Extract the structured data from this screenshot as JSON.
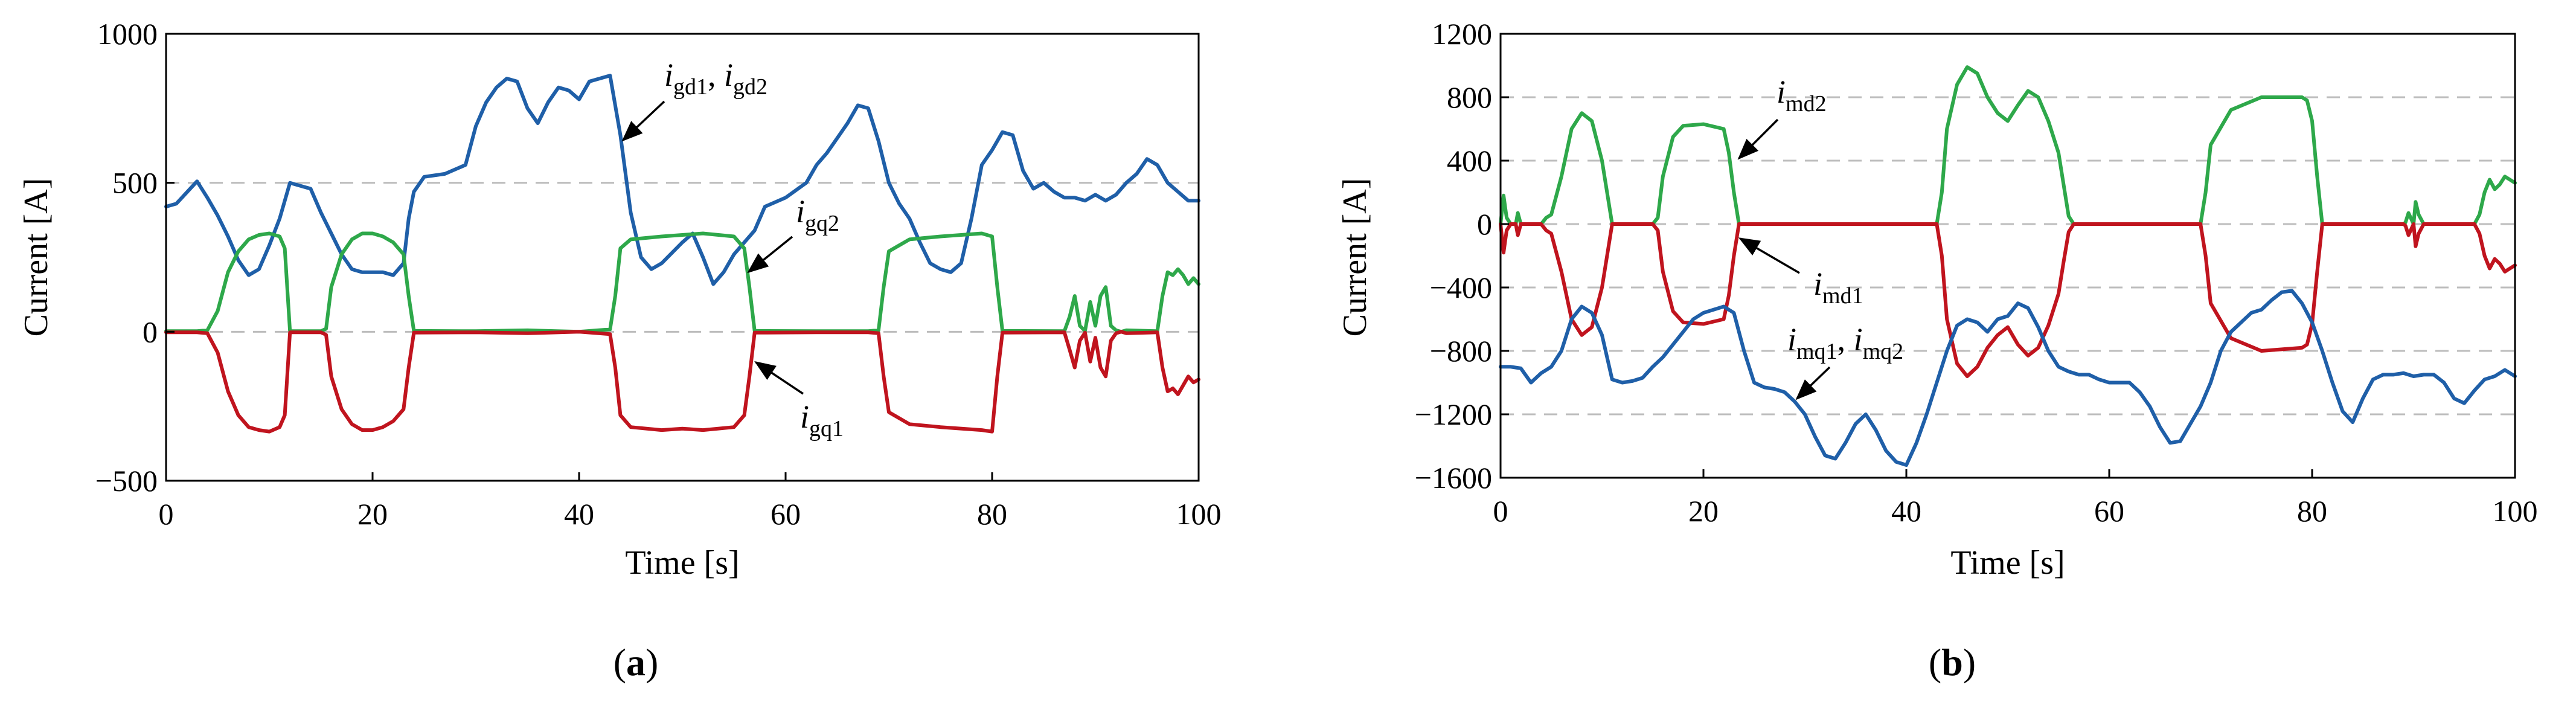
{
  "chart_data": [
    {
      "type": "line",
      "panel_label": "(a)",
      "xlabel": "Time [s]",
      "ylabel": "Current [A]",
      "xlim": [
        0,
        100
      ],
      "ylim": [
        -500,
        1000
      ],
      "xticks": [
        "0",
        "20",
        "40",
        "60",
        "80",
        "100"
      ],
      "yticks": [
        "1000",
        "500",
        "0",
        "−500"
      ],
      "ytick_values": [
        1000,
        500,
        0,
        -500
      ],
      "grid_y": [
        500,
        0
      ],
      "colors": {
        "blue": "#1f5fa8",
        "green": "#2ea84a",
        "red": "#c0141e"
      },
      "series": [
        {
          "name": "i_gd1, i_gd2",
          "color": "#1f5fa8",
          "x": [
            0,
            1,
            3,
            4,
            5,
            6,
            7,
            8,
            9,
            10,
            11,
            12,
            14,
            15,
            16,
            17,
            18,
            19,
            20,
            21,
            22,
            23,
            23.5,
            24,
            25,
            27,
            29,
            30,
            31,
            32,
            33,
            34,
            35,
            36,
            37,
            38,
            39,
            40,
            41,
            42,
            43,
            44,
            45,
            46,
            47,
            48,
            50,
            51,
            52,
            53,
            54,
            55,
            57,
            58,
            60,
            62,
            63,
            64,
            65,
            66,
            67,
            68,
            69,
            70,
            71,
            72,
            73,
            74,
            75,
            76,
            77,
            78,
            79,
            80,
            81,
            82,
            83,
            84,
            85,
            86,
            87,
            88,
            89,
            90,
            91,
            92,
            93,
            94,
            95,
            96,
            97,
            98,
            99,
            100
          ],
          "y": [
            420,
            430,
            505,
            450,
            390,
            320,
            240,
            190,
            210,
            290,
            380,
            500,
            480,
            400,
            330,
            260,
            210,
            200,
            200,
            200,
            190,
            230,
            380,
            470,
            520,
            530,
            560,
            690,
            770,
            820,
            850,
            840,
            750,
            700,
            770,
            820,
            810,
            780,
            840,
            850,
            860,
            660,
            400,
            250,
            210,
            230,
            300,
            330,
            250,
            160,
            200,
            260,
            340,
            420,
            450,
            500,
            560,
            600,
            650,
            700,
            760,
            750,
            640,
            500,
            430,
            380,
            300,
            230,
            210,
            200,
            230,
            380,
            560,
            610,
            670,
            660,
            540,
            480,
            500,
            470,
            450,
            450,
            440,
            460,
            440,
            460,
            500,
            530,
            580,
            560,
            500,
            470,
            440,
            440
          ]
        },
        {
          "name": "i_gq2",
          "color": "#2ea84a",
          "x": [
            0,
            3,
            4,
            5,
            6,
            7,
            8,
            9,
            10,
            11,
            11.5,
            12,
            15,
            15.5,
            16,
            17,
            18,
            19,
            20,
            21,
            22,
            23,
            23.5,
            24,
            30,
            35,
            40,
            43,
            43.5,
            44,
            45,
            48,
            50,
            52,
            55,
            56,
            56.5,
            57,
            63,
            68,
            69,
            69.5,
            70,
            72,
            75,
            79,
            80,
            80.5,
            81,
            87,
            87.5,
            88,
            88.5,
            89,
            89.5,
            90,
            90.5,
            91,
            91.5,
            92,
            92.5,
            93,
            96,
            96.5,
            97,
            97.5,
            98,
            98.5,
            99,
            99.5,
            100
          ],
          "y": [
            2,
            2,
            5,
            70,
            200,
            270,
            310,
            325,
            330,
            320,
            280,
            2,
            2,
            10,
            150,
            260,
            310,
            330,
            330,
            320,
            300,
            260,
            120,
            3,
            2,
            5,
            0,
            8,
            120,
            280,
            310,
            320,
            325,
            330,
            320,
            280,
            150,
            3,
            2,
            2,
            5,
            150,
            270,
            310,
            320,
            330,
            320,
            150,
            3,
            2,
            50,
            120,
            20,
            3,
            100,
            20,
            120,
            150,
            20,
            5,
            0,
            5,
            2,
            120,
            200,
            190,
            210,
            190,
            160,
            180,
            160
          ]
        },
        {
          "name": "i_gq1",
          "color": "#c0141e",
          "x": [
            0,
            3,
            4,
            5,
            6,
            7,
            8,
            9,
            10,
            11,
            11.5,
            12,
            15,
            15.5,
            16,
            17,
            18,
            19,
            20,
            21,
            22,
            23,
            23.5,
            24,
            30,
            35,
            40,
            43,
            43.5,
            44,
            45,
            48,
            50,
            52,
            55,
            56,
            56.5,
            57,
            63,
            68,
            69,
            69.5,
            70,
            72,
            75,
            79,
            80,
            80.5,
            81,
            87,
            87.5,
            88,
            88.5,
            89,
            89.5,
            90,
            90.5,
            91,
            91.5,
            92,
            92.5,
            93,
            96,
            96.5,
            97,
            97.5,
            98,
            98.5,
            99,
            99.5,
            100
          ],
          "y": [
            -2,
            -2,
            -5,
            -70,
            -200,
            -280,
            -320,
            -330,
            -335,
            -320,
            -280,
            -2,
            -2,
            -10,
            -150,
            -260,
            -310,
            -330,
            -330,
            -320,
            -300,
            -260,
            -120,
            -3,
            -2,
            -5,
            0,
            -8,
            -120,
            -280,
            -320,
            -330,
            -325,
            -330,
            -320,
            -280,
            -150,
            -3,
            -2,
            -2,
            -5,
            -150,
            -270,
            -310,
            -320,
            -330,
            -335,
            -150,
            -3,
            -2,
            -60,
            -120,
            -30,
            -3,
            -100,
            -20,
            -120,
            -150,
            -30,
            -5,
            0,
            -5,
            -2,
            -120,
            -200,
            -190,
            -210,
            -180,
            -150,
            -170,
            -160
          ]
        }
      ],
      "annotations": [
        {
          "base": "i",
          "subscript": "gd1",
          "sep": ", ",
          "base2": "i",
          "subscript2": "gd2"
        },
        {
          "base": "i",
          "subscript": "gq2"
        },
        {
          "base": "i",
          "subscript": "gq1"
        }
      ]
    },
    {
      "type": "line",
      "panel_label": "(b)",
      "xlabel": "Time [s]",
      "ylabel": "Current [A]",
      "xlim": [
        0,
        100
      ],
      "ylim": [
        -1600,
        1200
      ],
      "xticks": [
        "0",
        "20",
        "40",
        "60",
        "80",
        "100"
      ],
      "yticks": [
        "1200",
        "800",
        "400",
        "0",
        "−400",
        "−800",
        "−1200",
        "−1600"
      ],
      "ytick_values": [
        1200,
        800,
        400,
        0,
        -400,
        -800,
        -1200,
        -1600
      ],
      "grid_y": [
        800,
        400,
        0,
        -400,
        -800,
        -1200
      ],
      "colors": {
        "blue": "#1f5fa8",
        "green": "#2ea84a",
        "red": "#c0141e"
      },
      "series": [
        {
          "name": "i_md2",
          "color": "#2ea84a",
          "x": [
            0,
            0.3,
            0.6,
            1,
            1.5,
            1.7,
            2,
            4,
            4.5,
            5,
            6,
            7,
            8,
            9,
            10,
            10.5,
            11,
            15,
            15.5,
            16,
            17,
            18,
            20,
            22,
            22.5,
            23,
            23.5,
            24,
            30,
            40,
            43,
            43.5,
            44,
            45,
            46,
            47,
            48,
            49,
            50,
            51,
            52,
            53,
            54,
            55,
            55.5,
            56,
            56.5,
            57,
            63,
            68,
            69,
            69.5,
            70,
            72,
            75,
            79,
            79.5,
            80,
            80.5,
            81,
            87,
            87.5,
            88,
            89,
            89.2,
            89.5,
            90,
            90.2,
            90.5,
            91,
            96,
            96.5,
            97,
            97.5,
            98,
            98.5,
            99,
            99.5,
            100
          ],
          "y": [
            0,
            180,
            40,
            0,
            0,
            70,
            0,
            0,
            40,
            60,
            300,
            600,
            700,
            650,
            400,
            200,
            0,
            0,
            40,
            300,
            550,
            620,
            630,
            600,
            450,
            200,
            0,
            0,
            0,
            0,
            0,
            200,
            600,
            880,
            990,
            950,
            800,
            700,
            650,
            750,
            840,
            800,
            650,
            450,
            250,
            50,
            0,
            0,
            0,
            0,
            0,
            200,
            500,
            720,
            800,
            800,
            780,
            650,
            300,
            0,
            0,
            0,
            0,
            0,
            10,
            70,
            0,
            140,
            60,
            0,
            0,
            60,
            200,
            280,
            220,
            250,
            300,
            280,
            260
          ]
        },
        {
          "name": "i_md1",
          "color": "#c0141e",
          "x": [
            0,
            0.3,
            0.6,
            1,
            1.5,
            1.7,
            2,
            4,
            4.5,
            5,
            6,
            7,
            8,
            9,
            10,
            10.5,
            11,
            15,
            15.5,
            16,
            17,
            18,
            20,
            22,
            22.5,
            23,
            23.5,
            24,
            30,
            40,
            43,
            43.5,
            44,
            45,
            46,
            47,
            48,
            49,
            50,
            51,
            52,
            53,
            54,
            55,
            55.5,
            56,
            56.5,
            57,
            63,
            68,
            69,
            69.5,
            70,
            72,
            75,
            79,
            79.5,
            80,
            80.5,
            81,
            87,
            87.5,
            88,
            89,
            89.2,
            89.5,
            90,
            90.2,
            90.5,
            91,
            96,
            96.5,
            97,
            97.5,
            98,
            98.5,
            99,
            99.5,
            100
          ],
          "y": [
            0,
            -180,
            -40,
            0,
            0,
            -70,
            0,
            0,
            -40,
            -60,
            -300,
            -600,
            -700,
            -650,
            -400,
            -200,
            0,
            0,
            -40,
            -300,
            -550,
            -620,
            -630,
            -600,
            -450,
            -200,
            0,
            0,
            0,
            0,
            0,
            -200,
            -600,
            -880,
            -960,
            -900,
            -780,
            -700,
            -650,
            -760,
            -830,
            -780,
            -640,
            -440,
            -240,
            -50,
            0,
            0,
            0,
            0,
            0,
            -200,
            -500,
            -720,
            -800,
            -780,
            -760,
            -630,
            -300,
            0,
            0,
            0,
            0,
            0,
            -10,
            -70,
            0,
            -140,
            -60,
            0,
            0,
            -60,
            -200,
            -280,
            -220,
            -250,
            -300,
            -280,
            -260
          ]
        },
        {
          "name": "i_mq1, i_mq2",
          "color": "#1f5fa8",
          "x": [
            0,
            1,
            2,
            3,
            4,
            5,
            6,
            7,
            8,
            9,
            10,
            11,
            12,
            13,
            14,
            15,
            16,
            17,
            18,
            19,
            20,
            21,
            22,
            23,
            24,
            25,
            26,
            27,
            28,
            29,
            30,
            31,
            32,
            33,
            34,
            35,
            36,
            37,
            38,
            39,
            40,
            41,
            42,
            43,
            44,
            45,
            46,
            47,
            48,
            49,
            50,
            51,
            52,
            53,
            54,
            55,
            56,
            57,
            58,
            59,
            60,
            61,
            62,
            63,
            64,
            65,
            66,
            67,
            68,
            69,
            70,
            71,
            72,
            73,
            74,
            75,
            76,
            77,
            78,
            79,
            80,
            81,
            82,
            83,
            84,
            85,
            86,
            87,
            88,
            89,
            90,
            91,
            92,
            93,
            94,
            95,
            96,
            97,
            98,
            99,
            100
          ],
          "y": [
            -900,
            -900,
            -910,
            -1000,
            -940,
            -900,
            -800,
            -600,
            -520,
            -560,
            -700,
            -980,
            -1000,
            -990,
            -970,
            -900,
            -840,
            -760,
            -680,
            -600,
            -560,
            -540,
            -520,
            -560,
            -800,
            -1000,
            -1030,
            -1040,
            -1060,
            -1120,
            -1200,
            -1340,
            -1460,
            -1480,
            -1380,
            -1260,
            -1200,
            -1300,
            -1430,
            -1500,
            -1520,
            -1380,
            -1200,
            -1000,
            -800,
            -640,
            -600,
            -620,
            -680,
            -600,
            -580,
            -500,
            -530,
            -650,
            -800,
            -900,
            -930,
            -950,
            -950,
            -980,
            -1000,
            -1000,
            -1000,
            -1060,
            -1150,
            -1280,
            -1380,
            -1370,
            -1260,
            -1150,
            -1000,
            -800,
            -680,
            -620,
            -560,
            -540,
            -480,
            -430,
            -420,
            -500,
            -620,
            -800,
            -1000,
            -1180,
            -1250,
            -1100,
            -980,
            -950,
            -950,
            -940,
            -960,
            -950,
            -950,
            -1000,
            -1100,
            -1130,
            -1050,
            -980,
            -960,
            -920,
            -960
          ]
        }
      ],
      "annotations": [
        {
          "base": "i",
          "subscript": "md2"
        },
        {
          "base": "i",
          "subscript": "md1"
        },
        {
          "base": "i",
          "subscript": "mq1",
          "sep": ", ",
          "base2": "i",
          "subscript2": "mq2"
        }
      ]
    }
  ]
}
